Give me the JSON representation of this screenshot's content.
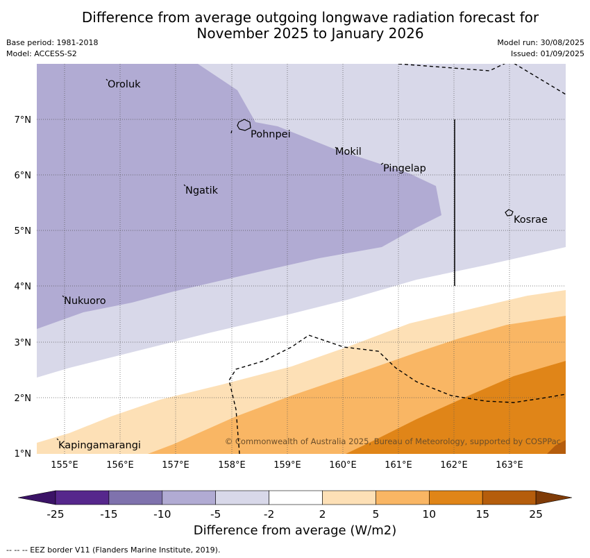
{
  "title_line1": "Difference from average outgoing longwave radiation forecast for",
  "title_line2": "November 2025 to January 2026",
  "base_period": "Base period: 1981-2018",
  "model": "Model: ACCESS-S2",
  "model_run": "Model run: 30/08/2025",
  "issued": "Issued: 01/09/2025",
  "copyright": "© Commonwealth of Australia 2025, Bureau of Meteorology, supported by COSPPac",
  "lat_labels": [
    "7°N",
    "6°N",
    "5°N",
    "4°N",
    "3°N",
    "2°N",
    "1°N"
  ],
  "lon_labels": [
    "155°E",
    "156°E",
    "157°E",
    "158°E",
    "159°E",
    "160°E",
    "161°E",
    "162°E",
    "163°E"
  ],
  "places": [
    "Oroluk",
    "Pohnpei",
    "Mokil",
    "Pingelap",
    "Ngatik",
    "Kosrae",
    "Nukuoro",
    "Kapingamarangi"
  ],
  "colorbar": {
    "title": "Difference from average (W/m2)",
    "ticks": [
      "-25",
      "-15",
      "-10",
      "-5",
      "-2",
      "2",
      "5",
      "10",
      "15",
      "25"
    ],
    "colors": [
      "#3b1366",
      "#56278c",
      "#7f72ad",
      "#b1abd3",
      "#d8d8e9",
      "#ffffff",
      "#fde0b6",
      "#f9b664",
      "#e08518",
      "#b55d0c",
      "#7f3b07"
    ]
  },
  "footer": "-- -- -- EEZ border V11 (Flanders Marine Institute, 2019)."
}
